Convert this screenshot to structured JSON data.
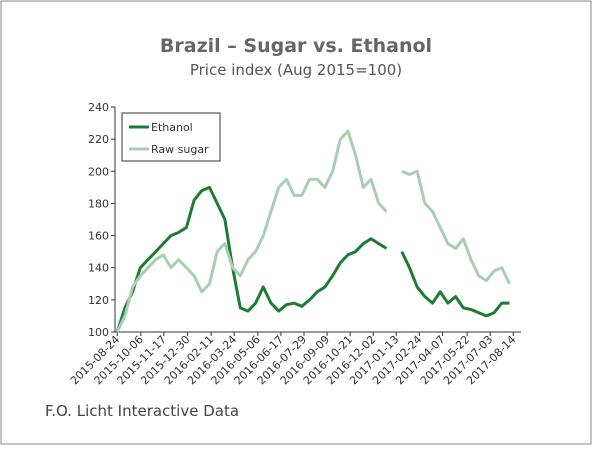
{
  "chart_data": {
    "type": "line",
    "title": "Brazil – Sugar vs. Ethanol",
    "subtitle": "Price index (Aug 2015=100)",
    "source": "F.O. Licht Interactive Data",
    "x": [
      "2015-08-24",
      "2015-09-07",
      "2015-09-21",
      "2015-10-05",
      "2015-10-19",
      "2015-11-02",
      "2015-11-16",
      "2015-11-30",
      "2015-12-14",
      "2015-12-28",
      "2016-01-11",
      "2016-01-25",
      "2016-02-08",
      "2016-02-22",
      "2016-03-07",
      "2016-03-21",
      "2016-04-04",
      "2016-04-18",
      "2016-05-02",
      "2016-05-16",
      "2016-05-30",
      "2016-06-13",
      "2016-06-27",
      "2016-07-11",
      "2016-07-25",
      "2016-08-08",
      "2016-08-22",
      "2016-09-05",
      "2016-09-19",
      "2016-10-03",
      "2016-10-17",
      "2016-10-31",
      "2016-11-14",
      "2016-11-28",
      "2016-12-12",
      "2016-12-26",
      "2017-01-09",
      "2017-01-23",
      "2017-02-06",
      "2017-02-20",
      "2017-03-06",
      "2017-03-20",
      "2017-04-03",
      "2017-04-17",
      "2017-05-01",
      "2017-05-15",
      "2017-05-29",
      "2017-06-12",
      "2017-06-26",
      "2017-07-10",
      "2017-07-24",
      "2017-08-07"
    ],
    "series": [
      {
        "name": "Ethanol",
        "color": "#1e7b34",
        "values": [
          100,
          115,
          125,
          140,
          145,
          150,
          155,
          160,
          162,
          165,
          182,
          188,
          190,
          180,
          170,
          140,
          115,
          113,
          118,
          128,
          118,
          113,
          117,
          118,
          116,
          120,
          125,
          128,
          135,
          143,
          148,
          150,
          155,
          158,
          155,
          152,
          null,
          150,
          140,
          128,
          122,
          118,
          125,
          118,
          122,
          115,
          114,
          112,
          110,
          112,
          118,
          118
        ]
      },
      {
        "name": "Raw sugar",
        "color": "#a8cfb3",
        "values": [
          100,
          110,
          128,
          135,
          140,
          145,
          148,
          140,
          145,
          140,
          135,
          125,
          130,
          150,
          155,
          140,
          135,
          145,
          150,
          160,
          175,
          190,
          195,
          185,
          185,
          195,
          195,
          190,
          200,
          220,
          225,
          210,
          190,
          195,
          180,
          175,
          null,
          200,
          198,
          200,
          180,
          175,
          165,
          155,
          152,
          158,
          145,
          135,
          132,
          138,
          140,
          130
        ]
      }
    ],
    "xlim": [
      "2015-08-20",
      "2017-08-28"
    ],
    "ylim": [
      100,
      240
    ],
    "yticks": [
      100,
      120,
      140,
      160,
      180,
      200,
      220,
      240
    ],
    "xticks": [
      "2015-08-24",
      "2015-10-06",
      "2015-11-17",
      "2015-12-30",
      "2016-02-11",
      "2016-03-24",
      "2016-05-06",
      "2016-06-17",
      "2016-07-29",
      "2016-09-09",
      "2016-10-21",
      "2016-12-02",
      "2017-01-13",
      "2017-02-24",
      "2017-04-07",
      "2017-05-22",
      "2017-07-03",
      "2017-08-14"
    ]
  }
}
